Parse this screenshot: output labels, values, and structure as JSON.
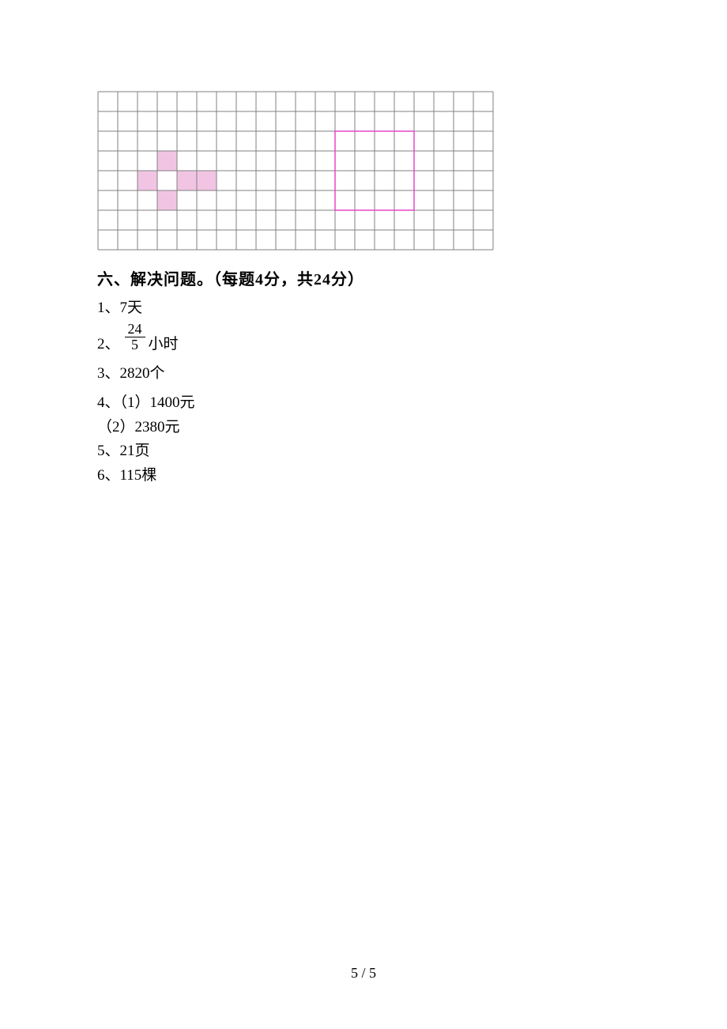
{
  "grid": {
    "cols": 20,
    "rows": 8,
    "cell_size": 25,
    "border_color": "#808080",
    "border_width": 1,
    "background_color": "#ffffff",
    "pink_fill": "#f2c4e3",
    "pink_cells": [
      {
        "col": 3,
        "row": 3
      },
      {
        "col": 2,
        "row": 4
      },
      {
        "col": 4,
        "row": 4
      },
      {
        "col": 5,
        "row": 4
      },
      {
        "col": 3,
        "row": 5
      }
    ],
    "magenta_border": "#e846c8",
    "magenta_rect": {
      "col": 12,
      "row": 2,
      "width": 4,
      "height": 4
    }
  },
  "section_title": "六、解决问题。（每题4分，共24分）",
  "answers": {
    "a1": "1、7天",
    "a2_prefix": "2、",
    "a2_num": "24",
    "a2_den": "5",
    "a2_suffix": "小时",
    "a3": "3、2820个",
    "a4a": "4、（1）1400元",
    "a4b": "（2）2380元",
    "a5": "5、21页",
    "a6": "6、115棵"
  },
  "page_number": "5 / 5"
}
